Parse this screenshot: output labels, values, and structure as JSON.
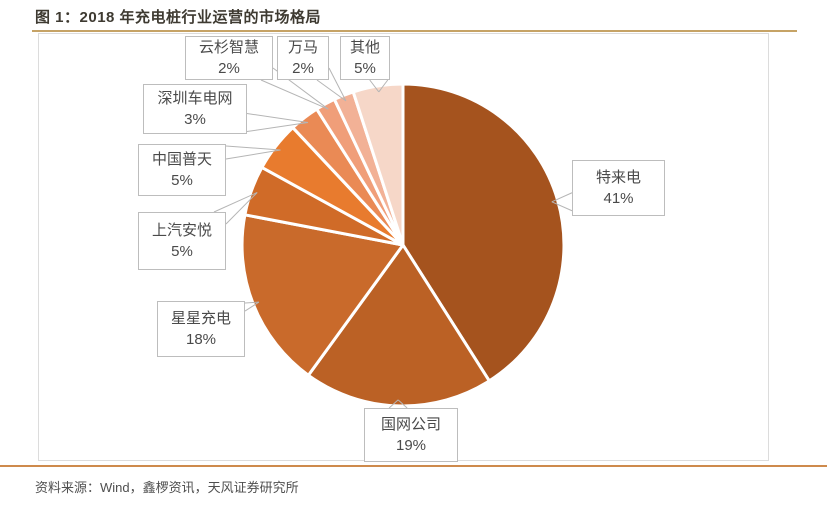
{
  "page": {
    "figure_title": "图 1：2018 年充电桩行业运营的市场格局",
    "source": "资料来源：Wind，鑫椤资讯，天风证券研究所"
  },
  "colors": {
    "title_text": "#3E3A31",
    "title_rule": "#C6A366",
    "footer_rule": "#CE8A4C",
    "callout_border": "#BDBDBD",
    "leader_line": "#B5B5B5",
    "slice_divider": "#FFFFFF"
  },
  "chart_data": {
    "type": "pie",
    "title": "2018 年充电桩行业运营的市场格局",
    "unit": "%",
    "start_angle_deg": 0,
    "direction": "clockwise",
    "legend": "none (callout labels on slices)",
    "series": [
      {
        "name": "特来电",
        "value": 41,
        "pct_label": "41%",
        "color": "#A5531E"
      },
      {
        "name": "国网公司",
        "value": 19,
        "pct_label": "19%",
        "color": "#BB6125"
      },
      {
        "name": "星星充电",
        "value": 18,
        "pct_label": "18%",
        "color": "#C96A2B"
      },
      {
        "name": "上汽安悦",
        "value": 5,
        "pct_label": "5%",
        "color": "#D06B28"
      },
      {
        "name": "中国普天",
        "value": 5,
        "pct_label": "5%",
        "color": "#E87B2E"
      },
      {
        "name": "深圳车电网",
        "value": 3,
        "pct_label": "3%",
        "color": "#EA8A55"
      },
      {
        "name": "云杉智慧",
        "value": 2,
        "pct_label": "2%",
        "color": "#F09E79"
      },
      {
        "name": "万马",
        "value": 2,
        "pct_label": "2%",
        "color": "#F2B196"
      },
      {
        "name": "其他",
        "value": 5,
        "pct_label": "5%",
        "color": "#F6D7C8"
      }
    ]
  }
}
